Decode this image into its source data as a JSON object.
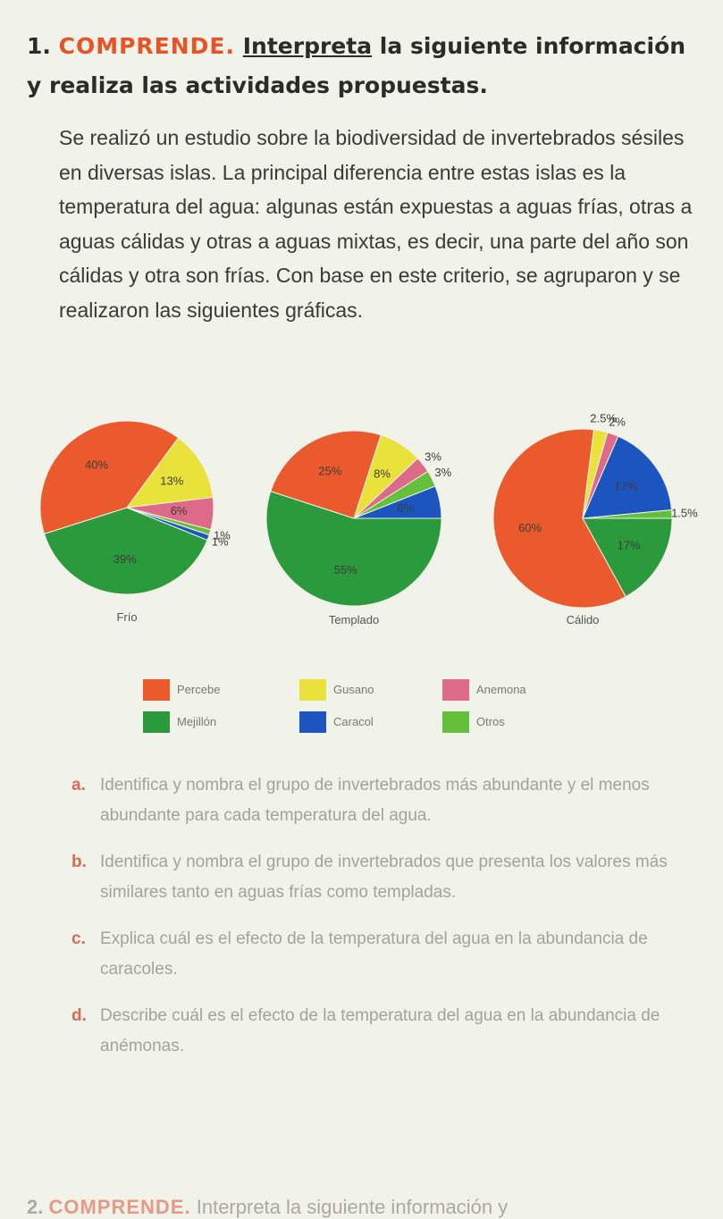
{
  "question": {
    "number": "1.",
    "heading": "COMPRENDE.",
    "underlined": "Interpreta",
    "rest": "la siguiente información y realiza las actividades propuestas."
  },
  "intro": "Se realizó un estudio sobre la biodiversidad de invertebrados sésiles en diversas islas. La principal diferencia entre estas islas es la temperatura del agua: algunas están expuestas a aguas frías, otras a aguas cálidas y otras a aguas mixtas, es decir, una parte del año son cálidas y otra son frías. Con base en este criterio, se agruparon y se realizaron las siguientes gráficas.",
  "colors": {
    "Percebe": "#ea5a2c",
    "Gusano": "#e9e23a",
    "Anemona": "#dd6a86",
    "Mejillon": "#2a9a3c",
    "Caracol": "#1d55c0",
    "Otros": "#64bf3a"
  },
  "legend": [
    {
      "name": "Percebe",
      "label": "Percebe"
    },
    {
      "name": "Gusano",
      "label": "Gusano"
    },
    {
      "name": "Anemona",
      "label": "Anemona"
    },
    {
      "name": "Mejillon",
      "label": "Mejillón"
    },
    {
      "name": "Caracol",
      "label": "Caracol"
    },
    {
      "name": "Otros",
      "label": "Otros"
    }
  ],
  "chart_data": [
    {
      "type": "pie",
      "title": "Frío",
      "slices": [
        {
          "series": "Mejillon",
          "value": 39,
          "label": "39%"
        },
        {
          "series": "Percebe",
          "value": 40,
          "label": "40%"
        },
        {
          "series": "Gusano",
          "value": 13,
          "label": "13%"
        },
        {
          "series": "Anemona",
          "value": 6,
          "label": "6%"
        },
        {
          "series": "Otros",
          "value": 1,
          "label": "1%"
        },
        {
          "series": "Caracol",
          "value": 1,
          "label": "1%"
        }
      ]
    },
    {
      "type": "pie",
      "title": "Templado",
      "slices": [
        {
          "series": "Mejillon",
          "value": 55,
          "label": "55%"
        },
        {
          "series": "Percebe",
          "value": 25,
          "label": "25%"
        },
        {
          "series": "Gusano",
          "value": 8,
          "label": "8%"
        },
        {
          "series": "Anemona",
          "value": 3,
          "label": "3%"
        },
        {
          "series": "Otros",
          "value": 3,
          "label": "3%"
        },
        {
          "series": "Caracol",
          "value": 6,
          "label": "6%"
        }
      ]
    },
    {
      "type": "pie",
      "title": "Cálido",
      "slices": [
        {
          "series": "Mejillon",
          "value": 17,
          "label": "17%"
        },
        {
          "series": "Percebe",
          "value": 60,
          "label": "60%"
        },
        {
          "series": "Gusano",
          "value": 2.5,
          "label": "2.5%"
        },
        {
          "series": "Anemona",
          "value": 2,
          "label": "2%"
        },
        {
          "series": "Caracol",
          "value": 17,
          "label": "17%"
        },
        {
          "series": "Otros",
          "value": 1.5,
          "label": "1.5%"
        }
      ]
    }
  ],
  "activities": [
    {
      "letter": "a.",
      "text": "Identifica y nombra el grupo de invertebrados más abundante y el menos abundante para cada temperatura del agua."
    },
    {
      "letter": "b.",
      "text": "Identifica y nombra el grupo de invertebrados que presenta los valores más similares tanto en aguas frías como templadas."
    },
    {
      "letter": "c.",
      "text": "Explica cuál es el efecto de la temperatura del agua en la abundancia de caracoles."
    },
    {
      "letter": "d.",
      "text": "Describe cuál es el efecto de la temperatura del agua en la abundancia de anémonas."
    }
  ],
  "next_question": {
    "number": "2.",
    "heading": "COMPRENDE.",
    "rest": "Interpreta la siguiente información y"
  }
}
